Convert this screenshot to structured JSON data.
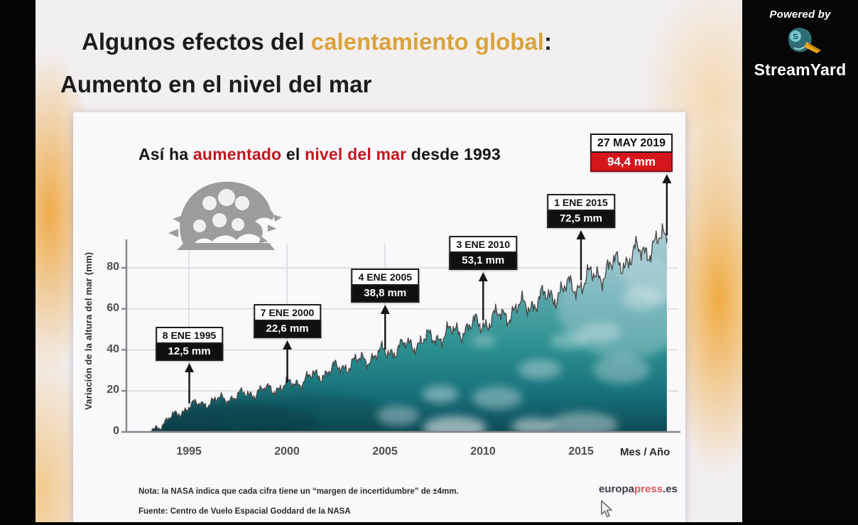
{
  "branding": {
    "powered_by": "Powered by",
    "brand": "StreamYard"
  },
  "slide": {
    "title": {
      "prefix": "Algunos efectos del ",
      "highlight": "calentamiento global",
      "suffix": ":",
      "line2": "Aumento en el nivel del mar",
      "highlight_color": "#d9a43c"
    }
  },
  "chart": {
    "title": {
      "t1": "Así ha ",
      "t2": "aumentado",
      "t3": " el ",
      "t4": "nivel del mar",
      "t5": " desde 1993",
      "accent_color": "#c3161c"
    }
  },
  "chart_data": {
    "type": "area",
    "title": "Así ha aumentado el nivel del mar desde 1993",
    "ylabel": "Variación de la altura del mar (mm)",
    "xlabel": "Mes / Año",
    "x_ticks": [
      "1995",
      "2000",
      "2005",
      "2010",
      "2015"
    ],
    "y_ticks": [
      0,
      20,
      40,
      60,
      80
    ],
    "ylim": [
      0,
      100
    ],
    "xlim": [
      1993,
      2019.5
    ],
    "grid": true,
    "series_start": {
      "year": 1993,
      "value_mm": 0
    },
    "points": [
      {
        "date": "8 ENE 1995",
        "year": 1995.02,
        "value_mm": 12.5,
        "label": "12,5 mm",
        "highlight": false
      },
      {
        "date": "7 ENE 2000",
        "year": 2000.02,
        "value_mm": 22.6,
        "label": "22,6 mm",
        "highlight": false
      },
      {
        "date": "4 ENE 2005",
        "year": 2005.01,
        "value_mm": 38.8,
        "label": "38,8 mm",
        "highlight": false
      },
      {
        "date": "3 ENE 2010",
        "year": 2010.01,
        "value_mm": 53.1,
        "label": "53,1 mm",
        "highlight": false
      },
      {
        "date": "1 ENE 2015",
        "year": 2015.0,
        "value_mm": 72.5,
        "label": "72,5 mm",
        "highlight": false
      },
      {
        "date": "27 MAY 2019",
        "year": 2019.38,
        "value_mm": 94.4,
        "label": "94,4 mm",
        "highlight": true
      }
    ],
    "highlight_color": "#d6161d",
    "wave_colors": {
      "top": "#9fc4cf",
      "mid": "#2d9191",
      "bottom": "#0d4a55"
    }
  },
  "footer": {
    "note": "Nota: la NASA indica que cada cifra tiene un “margen de incertidumbre” de ±4mm.",
    "source": "Fuente: Centro de Vuelo Espacial Goddard de la NASA"
  },
  "logo": {
    "europa": "europa",
    "press": "press",
    "tld": ".es",
    "press_color": "#e05a60"
  }
}
